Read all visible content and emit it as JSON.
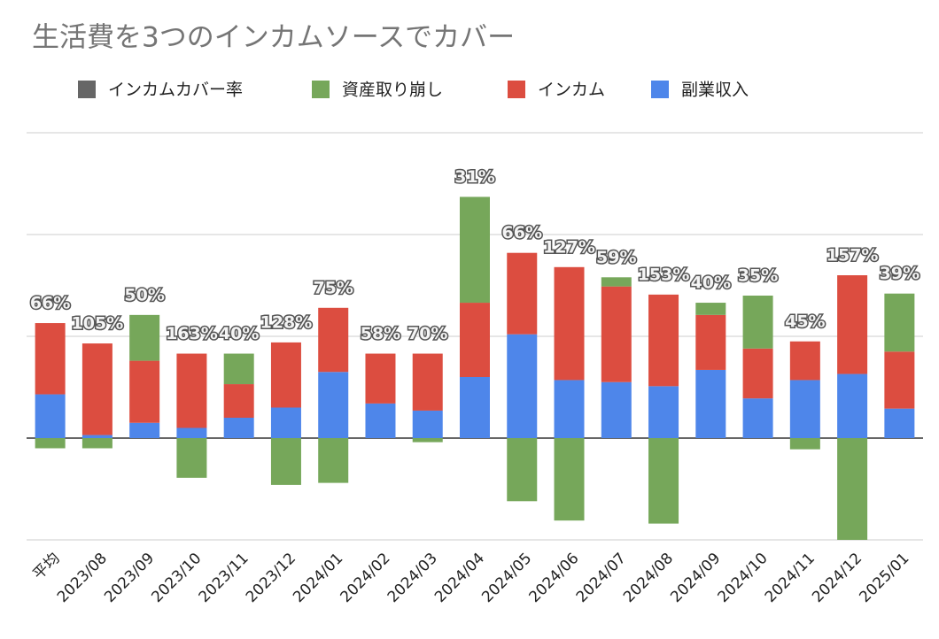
{
  "chart_data": {
    "type": "bar",
    "stacked": true,
    "title": "生活費を3つのインカムソースでカバー",
    "categories": [
      "平均",
      "2023/08",
      "2023/09",
      "2023/10",
      "2023/11",
      "2023/12",
      "2024/01",
      "2024/02",
      "2024/03",
      "2024/04",
      "2024/05",
      "2024/06",
      "2024/07",
      "2024/08",
      "2024/09",
      "2024/10",
      "2024/11",
      "2024/12",
      "2025/01"
    ],
    "series": [
      {
        "name": "インカムカバー率",
        "color": "#666666",
        "values": [
          66,
          105,
          50,
          163,
          40,
          128,
          75,
          58,
          70,
          31,
          66,
          127,
          59,
          153,
          40,
          35,
          45,
          157,
          39
        ],
        "value_labels": [
          "66%",
          "105%",
          "50%",
          "163%",
          "40%",
          "128%",
          "75%",
          "58%",
          "70%",
          "31%",
          "66%",
          "127%",
          "59%",
          "153%",
          "40%",
          "35%",
          "45%",
          "157%",
          "39%"
        ]
      },
      {
        "name": "資産取り崩し",
        "color": "#76a75a",
        "values": [
          -10,
          -10,
          45,
          -39,
          30,
          -46,
          -44,
          0,
          -4,
          104,
          -62,
          -81,
          9,
          -84,
          12,
          52,
          -11,
          -100,
          57
        ]
      },
      {
        "name": "インカム",
        "color": "#dc4d40",
        "values": [
          70,
          90,
          61,
          73,
          33,
          64,
          63,
          49,
          56,
          73,
          80,
          111,
          94,
          90,
          54,
          49,
          38,
          97,
          56
        ]
      },
      {
        "name": "副業収入",
        "color": "#4e86ea",
        "values": [
          43,
          3,
          15,
          10,
          20,
          30,
          65,
          34,
          27,
          60,
          102,
          57,
          55,
          51,
          67,
          39,
          57,
          63,
          29
        ]
      }
    ],
    "ylim": [
      -100,
      300
    ],
    "yticks": [
      -100,
      0,
      100,
      200,
      300
    ],
    "grid": true,
    "legend": "top"
  }
}
